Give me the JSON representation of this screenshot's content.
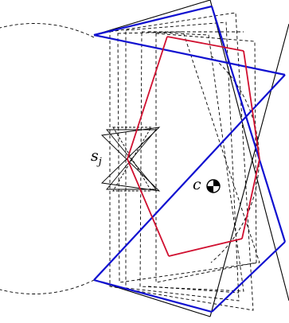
{
  "figure": {
    "label_s": "s",
    "label_s_sub": "j",
    "label_c": "c",
    "colors": {
      "outline": "#000000",
      "highlight_blue": "#1010d0",
      "highlight_red": "#d01030",
      "background": "#ffffff"
    }
  }
}
